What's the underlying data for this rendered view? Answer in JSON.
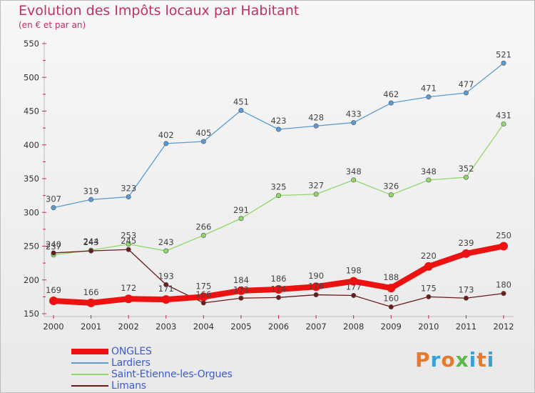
{
  "header": {
    "title": "Evolution des Impôts locaux par Habitant",
    "subtitle": "(en € et par an)"
  },
  "logo": {
    "text": "Proxiti",
    "colors": [
      "#e8792b",
      "#3aa0d8",
      "#e8792b",
      "#5bb84a",
      "#3aa0d8",
      "#e8792b",
      "#3aa0d8"
    ]
  },
  "chart_data": {
    "type": "line",
    "x": [
      "2000",
      "2001",
      "2002",
      "2003",
      "2004",
      "2005",
      "2006",
      "2007",
      "2008",
      "2009",
      "2010",
      "2011",
      "2012"
    ],
    "ylim": [
      150,
      550
    ],
    "yticks": [
      150,
      200,
      250,
      300,
      350,
      400,
      450,
      500,
      550
    ],
    "grid": false,
    "legend_position": "bottom-left",
    "series": [
      {
        "name": "ONGLES",
        "color": "#ee1111",
        "values": [
          169,
          166,
          172,
          171,
          175,
          184,
          186,
          190,
          198,
          188,
          220,
          239,
          250
        ]
      },
      {
        "name": "Lardiers",
        "color": "#5b9bd5",
        "values": [
          307,
          319,
          323,
          402,
          405,
          451,
          423,
          428,
          433,
          462,
          471,
          477,
          521
        ]
      },
      {
        "name": "Saint-Etienne-les-Orgues",
        "color": "#90d86a",
        "values": [
          237,
          244,
          253,
          243,
          266,
          291,
          325,
          327,
          348,
          326,
          348,
          352,
          431
        ]
      },
      {
        "name": "Limans",
        "color": "#6b1a1a",
        "values": [
          240,
          243,
          245,
          193,
          166,
          173,
          174,
          178,
          177,
          160,
          175,
          173,
          180
        ]
      }
    ]
  }
}
